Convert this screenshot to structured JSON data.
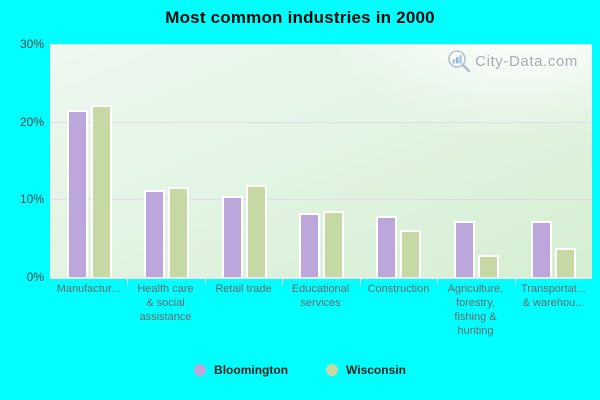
{
  "title": "Most common industries in 2000",
  "watermark": {
    "text": "City-Data.com"
  },
  "colors": {
    "background": "#00ffff",
    "bloomington": "#bda6dc",
    "wisconsin": "#c6d8a4",
    "bar_border": "#ffffff",
    "gridline": "#e0d8e6",
    "x_label": "#67696e",
    "y_label": "#3f4245",
    "title": "#0a0a0a",
    "watermark_text": "#a6adb2"
  },
  "chart_data": {
    "type": "bar",
    "title": "Most common industries in 2000",
    "categories": [
      "Manufacturing",
      "Health care & social assistance",
      "Retail trade",
      "Educational services",
      "Construction",
      "Agriculture, forestry, fishing & hunting",
      "Transportation & warehousing"
    ],
    "category_labels": [
      "Manufactur...",
      "Health care\n& social\nassistance",
      "Retail trade",
      "Educational\nservices",
      "Construction",
      "Agriculture,\nforestry,\nfishing &\nhunting",
      "Transportat...\n& warehou..."
    ],
    "series": [
      {
        "name": "Bloomington",
        "color": "#bda6dc",
        "values": [
          21.5,
          11.2,
          10.4,
          8.3,
          7.9,
          7.2,
          7.2
        ]
      },
      {
        "name": "Wisconsin",
        "color": "#c6d8a4",
        "values": [
          22.1,
          11.6,
          11.8,
          8.5,
          6.1,
          2.8,
          3.7
        ]
      }
    ],
    "ylim": [
      0,
      30
    ],
    "yticks": [
      {
        "value": 0,
        "label": "0%"
      },
      {
        "value": 10,
        "label": "10%"
      },
      {
        "value": 20,
        "label": "20%"
      },
      {
        "value": 30,
        "label": "30%"
      }
    ],
    "grid": true,
    "legend_position": "bottom"
  }
}
